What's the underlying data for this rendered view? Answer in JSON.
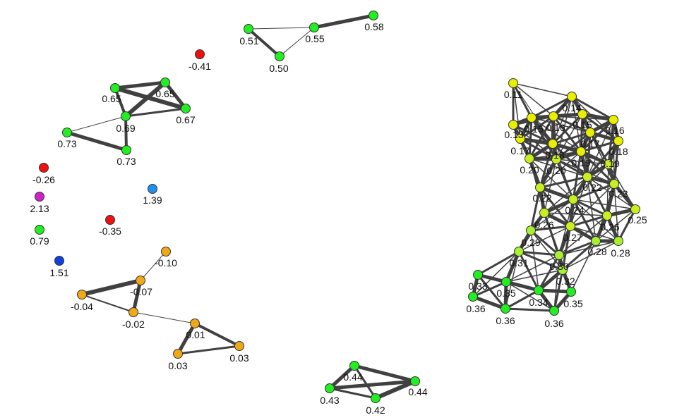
{
  "colors": {
    "green": "#22ee22",
    "yellow": "#e8f000",
    "yellowgreen": "#c8f020",
    "lime": "#a8f030",
    "orange": "#f0a818",
    "red": "#ee1111",
    "magenta": "#cc22cc",
    "lightblue": "#2090f0",
    "blue": "#1040e0",
    "edge": "#404040"
  },
  "nodes": [
    {
      "id": "a1",
      "label": "0.51",
      "color": "green"
    },
    {
      "id": "a2",
      "label": "0.55",
      "color": "green"
    },
    {
      "id": "a3",
      "label": "0.58",
      "color": "green"
    },
    {
      "id": "a4",
      "label": "0.50",
      "color": "green"
    },
    {
      "id": "r1",
      "label": "-0.41",
      "color": "red"
    },
    {
      "id": "b1",
      "label": "0.65",
      "color": "green"
    },
    {
      "id": "b2",
      "label": "0.65",
      "color": "green"
    },
    {
      "id": "b3",
      "label": "0.69",
      "color": "green"
    },
    {
      "id": "b4",
      "label": "0.67",
      "color": "green"
    },
    {
      "id": "b5",
      "label": "0.73",
      "color": "green"
    },
    {
      "id": "b6",
      "label": "0.73",
      "color": "green"
    },
    {
      "id": "r2",
      "label": "-0.26",
      "color": "red"
    },
    {
      "id": "m1",
      "label": "2.13",
      "color": "magenta"
    },
    {
      "id": "lb1",
      "label": "1.39",
      "color": "lightblue"
    },
    {
      "id": "r3",
      "label": "-0.35",
      "color": "red"
    },
    {
      "id": "g1",
      "label": "0.79",
      "color": "green"
    },
    {
      "id": "bl1",
      "label": "1.51",
      "color": "blue"
    },
    {
      "id": "o1",
      "label": "-0.10",
      "color": "orange"
    },
    {
      "id": "o2",
      "label": "-0.07",
      "color": "orange"
    },
    {
      "id": "o3",
      "label": "-0.04",
      "color": "orange"
    },
    {
      "id": "o4",
      "label": "-0.02",
      "color": "orange"
    },
    {
      "id": "o5",
      "label": "0.01",
      "color": "orange"
    },
    {
      "id": "o6",
      "label": "0.03",
      "color": "orange"
    },
    {
      "id": "o7",
      "label": "0.03",
      "color": "orange"
    },
    {
      "id": "c1",
      "label": "0.44",
      "color": "green"
    },
    {
      "id": "c2",
      "label": "0.43",
      "color": "green"
    },
    {
      "id": "c3",
      "label": "0.42",
      "color": "green"
    },
    {
      "id": "c4",
      "label": "0.44",
      "color": "green"
    },
    {
      "id": "y1",
      "label": "0.11",
      "color": "yellow"
    },
    {
      "id": "y2",
      "label": "0.14",
      "color": "yellow"
    },
    {
      "id": "y3",
      "label": "0.15",
      "color": "yellow"
    },
    {
      "id": "y4",
      "label": "0.16",
      "color": "yellow"
    },
    {
      "id": "y5",
      "label": "0.15",
      "color": "yellow"
    },
    {
      "id": "y6",
      "label": "0.16",
      "color": "yellow"
    },
    {
      "id": "y7",
      "label": "0.13",
      "color": "yellow"
    },
    {
      "id": "y8",
      "label": "0.17",
      "color": "yellow"
    },
    {
      "id": "y9",
      "label": "0.17",
      "color": "yellow"
    },
    {
      "id": "y10",
      "label": "0.18",
      "color": "yellow"
    },
    {
      "id": "y11",
      "label": "0.18",
      "color": "yellow"
    },
    {
      "id": "y12",
      "label": "0.19",
      "color": "yellow"
    },
    {
      "id": "y13",
      "label": "0.19",
      "color": "yellowgreen"
    },
    {
      "id": "y14",
      "label": "0.20",
      "color": "yellowgreen"
    },
    {
      "id": "y15",
      "label": "0.20",
      "color": "yellowgreen"
    },
    {
      "id": "y16",
      "label": "0.22",
      "color": "yellowgreen"
    },
    {
      "id": "y17",
      "label": "0.22",
      "color": "yellowgreen"
    },
    {
      "id": "y18",
      "label": "0.23",
      "color": "yellowgreen"
    },
    {
      "id": "y19",
      "label": "0.24",
      "color": "yellowgreen"
    },
    {
      "id": "y20",
      "label": "0.25",
      "color": "yellowgreen"
    },
    {
      "id": "y21",
      "label": "0.26",
      "color": "yellowgreen"
    },
    {
      "id": "y22",
      "label": "0.26",
      "color": "yellowgreen"
    },
    {
      "id": "y23",
      "label": "0.27",
      "color": "yellowgreen"
    },
    {
      "id": "y24",
      "label": "0.29",
      "color": "lime"
    },
    {
      "id": "y25",
      "label": "0.28",
      "color": "lime"
    },
    {
      "id": "y26",
      "label": "0.28",
      "color": "lime"
    },
    {
      "id": "y27",
      "label": "0.31",
      "color": "lime"
    },
    {
      "id": "y28",
      "label": "0.30",
      "color": "lime"
    },
    {
      "id": "y29",
      "label": "0.32",
      "color": "lime"
    },
    {
      "id": "y30",
      "label": "0.33",
      "color": "green"
    },
    {
      "id": "y31",
      "label": "0.35",
      "color": "green"
    },
    {
      "id": "y32",
      "label": "0.34",
      "color": "green"
    },
    {
      "id": "y33",
      "label": "0.35",
      "color": "green"
    },
    {
      "id": "y34",
      "label": "0.36",
      "color": "green"
    },
    {
      "id": "y35",
      "label": "0.36",
      "color": "green"
    },
    {
      "id": "y36",
      "label": "0.36",
      "color": "green"
    }
  ],
  "edges": [
    [
      "a1",
      "a2",
      1
    ],
    [
      "a2",
      "a3",
      5
    ],
    [
      "a1",
      "a4",
      4
    ],
    [
      "a4",
      "a2",
      1
    ],
    [
      "b1",
      "b2",
      5
    ],
    [
      "b1",
      "b3",
      4
    ],
    [
      "b1",
      "b4",
      6
    ],
    [
      "b2",
      "b3",
      6
    ],
    [
      "b2",
      "b4",
      5
    ],
    [
      "b3",
      "b4",
      3
    ],
    [
      "b3",
      "b6",
      4
    ],
    [
      "b5",
      "b6",
      5
    ],
    [
      "b5",
      "b3",
      1
    ],
    [
      "o1",
      "o2",
      1
    ],
    [
      "o2",
      "o3",
      6
    ],
    [
      "o2",
      "o4",
      5
    ],
    [
      "o3",
      "o4",
      2
    ],
    [
      "o4",
      "o5",
      1
    ],
    [
      "o5",
      "o6",
      5
    ],
    [
      "o5",
      "o7",
      4
    ],
    [
      "o6",
      "o7",
      3
    ],
    [
      "c1",
      "c2",
      5
    ],
    [
      "c1",
      "c3",
      3
    ],
    [
      "c1",
      "c4",
      5
    ],
    [
      "c2",
      "c4",
      5
    ],
    [
      "c3",
      "c4",
      6
    ],
    [
      "c2",
      "c3",
      3
    ]
  ]
}
